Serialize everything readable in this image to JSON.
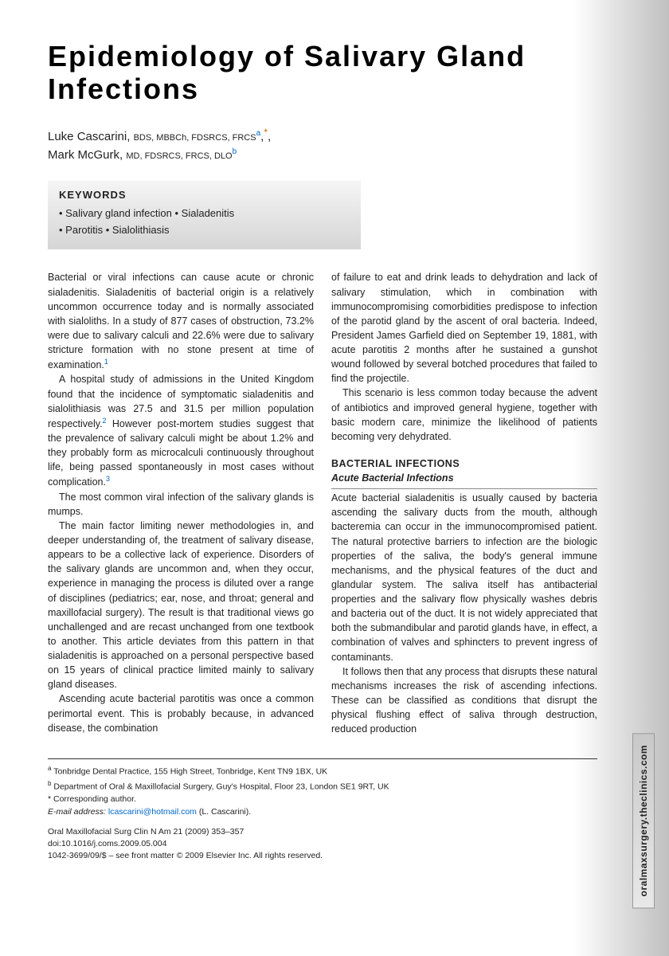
{
  "title": "Epidemiology of Salivary Gland Infections",
  "authors": [
    {
      "name": "Luke Cascarini",
      "creds": "BDS, MBBCh, FDSRCS, FRCS",
      "affil": "a",
      "corr": true
    },
    {
      "name": "Mark McGurk",
      "creds": "MD, FDSRCS, FRCS, DLO",
      "affil": "b",
      "corr": false
    }
  ],
  "keywords_label": "KEYWORDS",
  "keywords": [
    "Salivary gland infection",
    "Sialadenitis",
    "Parotitis",
    "Sialolithiasis"
  ],
  "colA": {
    "p1": "Bacterial or viral infections can cause acute or chronic sialadenitis. Sialadenitis of bacterial origin is a relatively uncommon occurrence today and is normally associated with sialoliths. In a study of 877 cases of obstruction, 73.2% were due to salivary calculi and 22.6% were due to salivary stricture formation with no stone present at time of examination.",
    "p1_ref": "1",
    "p2a": "A hospital study of admissions in the United Kingdom found that the incidence of symptomatic sialadenitis and sialolithiasis was 27.5 and 31.5 per million population respectively.",
    "p2_ref": "2",
    "p2b": " However post-mortem studies suggest that the prevalence of salivary calculi might be about 1.2% and they probably form as microcalculi continuously throughout life, being passed spontaneously in most cases without complication.",
    "p2_ref2": "3",
    "p3": "The most common viral infection of the salivary glands is mumps.",
    "p4": "The main factor limiting newer methodologies in, and deeper understanding of, the treatment of salivary disease, appears to be a collective lack of experience. Disorders of the salivary glands are uncommon and, when they occur, experience in managing the process is diluted over a range of disciplines (pediatrics; ear, nose, and throat; general and maxillofacial surgery). The result is that traditional views go unchallenged and are recast unchanged from one textbook to another. This article deviates from this pattern in that sialadenitis is approached on a personal perspective based on 15 years of clinical practice limited mainly to salivary gland diseases.",
    "p5": "Ascending acute bacterial parotitis was once a common perimortal event. This is probably because, in advanced disease, the combination"
  },
  "colB": {
    "p1": "of failure to eat and drink leads to dehydration and lack of salivary stimulation, which in combination with immunocompromising comorbidities predispose to infection of the parotid gland by the ascent of oral bacteria. Indeed, President James Garfield died on September 19, 1881, with acute parotitis 2 months after he sustained a gunshot wound followed by several botched procedures that failed to find the projectile.",
    "p2": "This scenario is less common today because the advent of antibiotics and improved general hygiene, together with basic modern care, minimize the likelihood of patients becoming very dehydrated.",
    "sec_head": "BACTERIAL INFECTIONS",
    "sec_sub": "Acute Bacterial Infections",
    "p3": "Acute bacterial sialadenitis is usually caused by bacteria ascending the salivary ducts from the mouth, although bacteremia can occur in the immunocompromised patient. The natural protective barriers to infection are the biologic properties of the saliva, the body's general immune mechanisms, and the physical features of the duct and glandular system. The saliva itself has antibacterial properties and the salivary flow physically washes debris and bacteria out of the duct. It is not widely appreciated that both the submandibular and parotid glands have, in effect, a combination of valves and sphincters to prevent ingress of contaminants.",
    "p4": "It follows then that any process that disrupts these natural mechanisms increases the risk of ascending infections. These can be classified as conditions that disrupt the physical flushing effect of saliva through destruction, reduced production"
  },
  "footer": {
    "affil_a": "Tonbridge Dental Practice, 155 High Street, Tonbridge, Kent TN9 1BX, UK",
    "affil_b": "Department of Oral & Maxillofacial Surgery, Guy's Hospital, Floor 23, London SE1 9RT, UK",
    "corr": "* Corresponding author.",
    "email_label": "E-mail address:",
    "email": "lcascarini@hotmail.com",
    "email_who": "(L. Cascarini).",
    "journal": "Oral Maxillofacial Surg Clin N Am 21 (2009) 353–357",
    "doi": "doi:10.1016/j.coms.2009.05.004",
    "copyright": "1042-3699/09/$ – see front matter © 2009 Elsevier Inc. All rights reserved."
  },
  "side_tab": "oralmaxsurgery.theclinics.com",
  "colors": {
    "link": "#0066cc",
    "accent": "#cc6600",
    "text": "#222222",
    "grad_start": "#f5f5f5",
    "grad_end": "#d5d5d5"
  }
}
